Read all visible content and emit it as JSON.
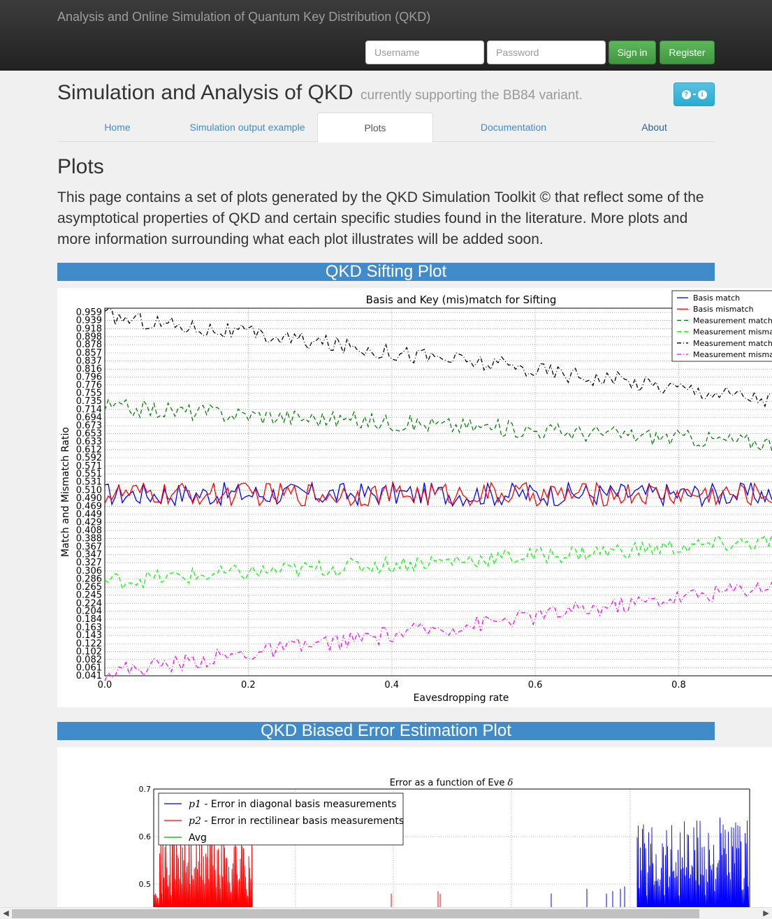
{
  "navbar": {
    "brand": "Analysis and Online Simulation of Quantum Key Distribution (QKD)",
    "username_placeholder": "Username",
    "password_placeholder": "Password",
    "signin_label": "Sign in",
    "register_label": "Register"
  },
  "header": {
    "title": "Simulation and Analysis of QKD",
    "subtitle": "currently supporting the BB84 variant.",
    "info_icons": [
      "question-icon",
      "info-icon"
    ]
  },
  "tabs": [
    {
      "label": "Home",
      "active": false
    },
    {
      "label": "Simulation output example",
      "active": false
    },
    {
      "label": "Plots",
      "active": true
    },
    {
      "label": "Documentation",
      "active": false
    },
    {
      "label": "About",
      "active": false
    }
  ],
  "page": {
    "heading": "Plots",
    "lead": "This page contains a set of plots generated by the QKD Simulation Toolkit © that reflect some of the asymptotical properties of QKD and certain specific studies found in the literature. More plots and more information surrounding what each plot illustrates will be added soon."
  },
  "sections": {
    "sifting_title": "QKD Sifting Plot",
    "biased_title": "QKD Biased Error Estimation Plot"
  },
  "chart_data": [
    {
      "type": "line",
      "title": "Basis and Key (mis)match for Sifting",
      "xlabel": "Eavesdropping rate",
      "ylabel": "Match and Mismatch Ratio",
      "xlim": [
        0.0,
        0.93
      ],
      "ylim": [
        0.041,
        0.97
      ],
      "x_ticks": [
        "0.0",
        "0.2",
        "0.4",
        "0.6",
        "0.8"
      ],
      "y_ticks": [
        "0.959",
        "0.939",
        "0.918",
        "0.898",
        "0.878",
        "0.857",
        "0.837",
        "0.816",
        "0.796",
        "0.776",
        "0.755",
        "0.735",
        "0.714",
        "0.694",
        "0.673",
        "0.653",
        "0.633",
        "0.612",
        "0.592",
        "0.571",
        "0.551",
        "0.531",
        "0.510",
        "0.490",
        "0.469",
        "0.449",
        "0.429",
        "0.408",
        "0.388",
        "0.367",
        "0.347",
        "0.327",
        "0.306",
        "0.286",
        "0.265",
        "0.245",
        "0.224",
        "0.204",
        "0.184",
        "0.163",
        "0.143",
        "0.122",
        "0.102",
        "0.082",
        "0.061",
        "0.041"
      ],
      "grid": true,
      "legend_position": "top-right",
      "series": [
        {
          "name": "Basis match",
          "color": "#0000ff",
          "style": "solid",
          "start": 0.5,
          "end": 0.5,
          "noise": 0.03
        },
        {
          "name": "Basis mismatch",
          "color": "#ff0000",
          "style": "solid",
          "start": 0.5,
          "end": 0.5,
          "noise": 0.03
        },
        {
          "name": "Measurement match be",
          "color": "#008000",
          "style": "dashed",
          "start": 0.72,
          "end": 0.63,
          "noise": 0.022
        },
        {
          "name": "Measurement mismatc",
          "color": "#00ff00",
          "style": "dashed",
          "start": 0.28,
          "end": 0.38,
          "noise": 0.022
        },
        {
          "name": "Measurement match af",
          "color": "#000000",
          "style": "dashdot",
          "start": 0.95,
          "end": 0.74,
          "noise": 0.022
        },
        {
          "name": "Measurement mismatc",
          "color": "#ff00ff",
          "style": "dashdot",
          "start": 0.05,
          "end": 0.27,
          "noise": 0.022
        }
      ]
    },
    {
      "type": "line",
      "title": "Error as a function of Eve",
      "title_symbol": "δ",
      "ylim": [
        0.45,
        0.7
      ],
      "y_ticks": [
        "0.7",
        "0.6",
        "0.5"
      ],
      "grid": true,
      "legend_position": "top-left",
      "series": [
        {
          "name_symbol": "p1",
          "name": " - Error in diagonal basis measurements",
          "color": "#0000ff"
        },
        {
          "name_symbol": "p2",
          "name": " - Error in rectilinear basis measurements",
          "color": "#ff0000"
        },
        {
          "name": "Avg",
          "color": "#00aa00"
        }
      ]
    }
  ]
}
